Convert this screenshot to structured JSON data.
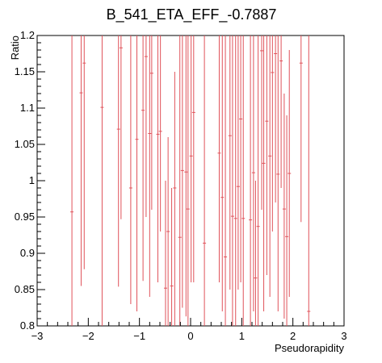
{
  "chart_data": {
    "type": "scatter",
    "title": "B_541_ETA_EFF_-0.7887",
    "xlabel": "Pseudorapidity",
    "ylabel": "Ratio",
    "xlim": [
      -3,
      3
    ],
    "ylim": [
      0.8,
      1.2
    ],
    "x_ticks": [
      "−3",
      "−2",
      "−1",
      "0",
      "1",
      "2",
      "3"
    ],
    "y_ticks": [
      "0.8",
      "0.85",
      "0.9",
      "0.95",
      "1",
      "1.05",
      "1.1",
      "1.15",
      "1.2"
    ],
    "grid": false,
    "legend": "none",
    "color": "#e0525a",
    "series": [
      {
        "points": [
          {
            "x": -2.32,
            "y": 0.957,
            "ylow": 0.8,
            "yhigh": 1.2
          },
          {
            "x": -2.14,
            "y": 1.121,
            "ylow": 0.855,
            "yhigh": 1.2
          },
          {
            "x": -2.08,
            "y": 1.162,
            "ylow": 0.878,
            "yhigh": 1.2
          },
          {
            "x": -1.73,
            "y": 1.101,
            "ylow": 0.8,
            "yhigh": 1.2
          },
          {
            "x": -1.41,
            "y": 1.071,
            "ylow": 0.854,
            "yhigh": 1.2
          },
          {
            "x": -1.36,
            "y": 1.183,
            "ylow": 0.947,
            "yhigh": 1.2
          },
          {
            "x": -1.17,
            "y": 0.99,
            "ylow": 0.83,
            "yhigh": 1.2
          },
          {
            "x": -1.05,
            "y": 1.057,
            "ylow": 0.82,
            "yhigh": 1.2
          },
          {
            "x": -0.93,
            "y": 1.097,
            "ylow": 0.862,
            "yhigh": 1.2
          },
          {
            "x": -0.87,
            "y": 1.171,
            "ylow": 0.95,
            "yhigh": 1.2
          },
          {
            "x": -0.8,
            "y": 1.065,
            "ylow": 0.84,
            "yhigh": 1.2
          },
          {
            "x": -0.76,
            "y": 1.148,
            "ylow": 0.96,
            "yhigh": 1.2
          },
          {
            "x": -0.64,
            "y": 1.064,
            "ylow": 0.86,
            "yhigh": 1.2
          },
          {
            "x": -0.59,
            "y": 1.068,
            "ylow": 0.93,
            "yhigh": 1.2
          },
          {
            "x": -0.49,
            "y": 0.852,
            "ylow": 0.8,
            "yhigh": 1.0
          },
          {
            "x": -0.44,
            "y": 0.93,
            "ylow": 0.8,
            "yhigh": 1.06
          },
          {
            "x": -0.37,
            "y": 0.855,
            "ylow": 0.8,
            "yhigh": 0.99
          },
          {
            "x": -0.31,
            "y": 0.99,
            "ylow": 0.8,
            "yhigh": 1.15
          },
          {
            "x": -0.21,
            "y": 0.922,
            "ylow": 0.8,
            "yhigh": 1.2
          },
          {
            "x": -0.16,
            "y": 1.014,
            "ylow": 0.825,
            "yhigh": 1.2
          },
          {
            "x": -0.09,
            "y": 1.012,
            "ylow": 0.813,
            "yhigh": 1.2
          },
          {
            "x": -0.05,
            "y": 0.961,
            "ylow": 0.8,
            "yhigh": 1.2
          },
          {
            "x": 0.01,
            "y": 1.034,
            "ylow": 0.86,
            "yhigh": 1.2
          },
          {
            "x": 0.06,
            "y": 1.094,
            "ylow": 0.86,
            "yhigh": 1.2
          },
          {
            "x": 0.27,
            "y": 0.914,
            "ylow": 0.8,
            "yhigh": 1.2
          },
          {
            "x": 0.56,
            "y": 1.038,
            "ylow": 0.86,
            "yhigh": 1.2
          },
          {
            "x": 0.62,
            "y": 0.977,
            "ylow": 0.82,
            "yhigh": 1.2
          },
          {
            "x": 0.68,
            "y": 0.895,
            "ylow": 0.8,
            "yhigh": 1.2
          },
          {
            "x": 0.77,
            "y": 1.062,
            "ylow": 0.85,
            "yhigh": 1.2
          },
          {
            "x": 0.82,
            "y": 0.951,
            "ylow": 0.8,
            "yhigh": 1.2
          },
          {
            "x": 0.88,
            "y": 0.948,
            "ylow": 0.8,
            "yhigh": 1.2
          },
          {
            "x": 0.93,
            "y": 0.992,
            "ylow": 0.85,
            "yhigh": 1.2
          },
          {
            "x": 0.98,
            "y": 1.085,
            "ylow": 0.86,
            "yhigh": 1.2
          },
          {
            "x": 1.03,
            "y": 0.948,
            "ylow": 0.8,
            "yhigh": 1.2
          },
          {
            "x": 1.17,
            "y": 0.946,
            "ylow": 0.8,
            "yhigh": 1.2
          },
          {
            "x": 1.23,
            "y": 1.011,
            "ylow": 0.82,
            "yhigh": 1.2
          },
          {
            "x": 1.27,
            "y": 0.866,
            "ylow": 0.8,
            "yhigh": 1.0
          },
          {
            "x": 1.32,
            "y": 0.937,
            "ylow": 0.8,
            "yhigh": 1.2
          },
          {
            "x": 1.39,
            "y": 1.179,
            "ylow": 0.96,
            "yhigh": 1.2
          },
          {
            "x": 1.43,
            "y": 1.024,
            "ylow": 0.82,
            "yhigh": 1.2
          },
          {
            "x": 1.49,
            "y": 1.082,
            "ylow": 0.87,
            "yhigh": 1.2
          },
          {
            "x": 1.55,
            "y": 1.034,
            "ylow": 0.84,
            "yhigh": 1.2
          },
          {
            "x": 1.6,
            "y": 1.149,
            "ylow": 0.93,
            "yhigh": 1.2
          },
          {
            "x": 1.66,
            "y": 1.175,
            "ylow": 0.97,
            "yhigh": 1.2
          },
          {
            "x": 1.71,
            "y": 1.009,
            "ylow": 0.82,
            "yhigh": 1.2
          },
          {
            "x": 1.77,
            "y": 1.165,
            "ylow": 0.99,
            "yhigh": 1.2
          },
          {
            "x": 1.83,
            "y": 0.961,
            "ylow": 0.81,
            "yhigh": 1.12
          },
          {
            "x": 1.88,
            "y": 0.923,
            "ylow": 0.8,
            "yhigh": 1.09
          },
          {
            "x": 1.93,
            "y": 1.01,
            "ylow": 0.84,
            "yhigh": 1.18
          },
          {
            "x": 2.16,
            "y": 1.162,
            "ylow": 0.943,
            "yhigh": 1.2
          },
          {
            "x": 2.31,
            "y": 0.82,
            "ylow": 0.8,
            "yhigh": 1.2
          }
        ]
      }
    ]
  }
}
